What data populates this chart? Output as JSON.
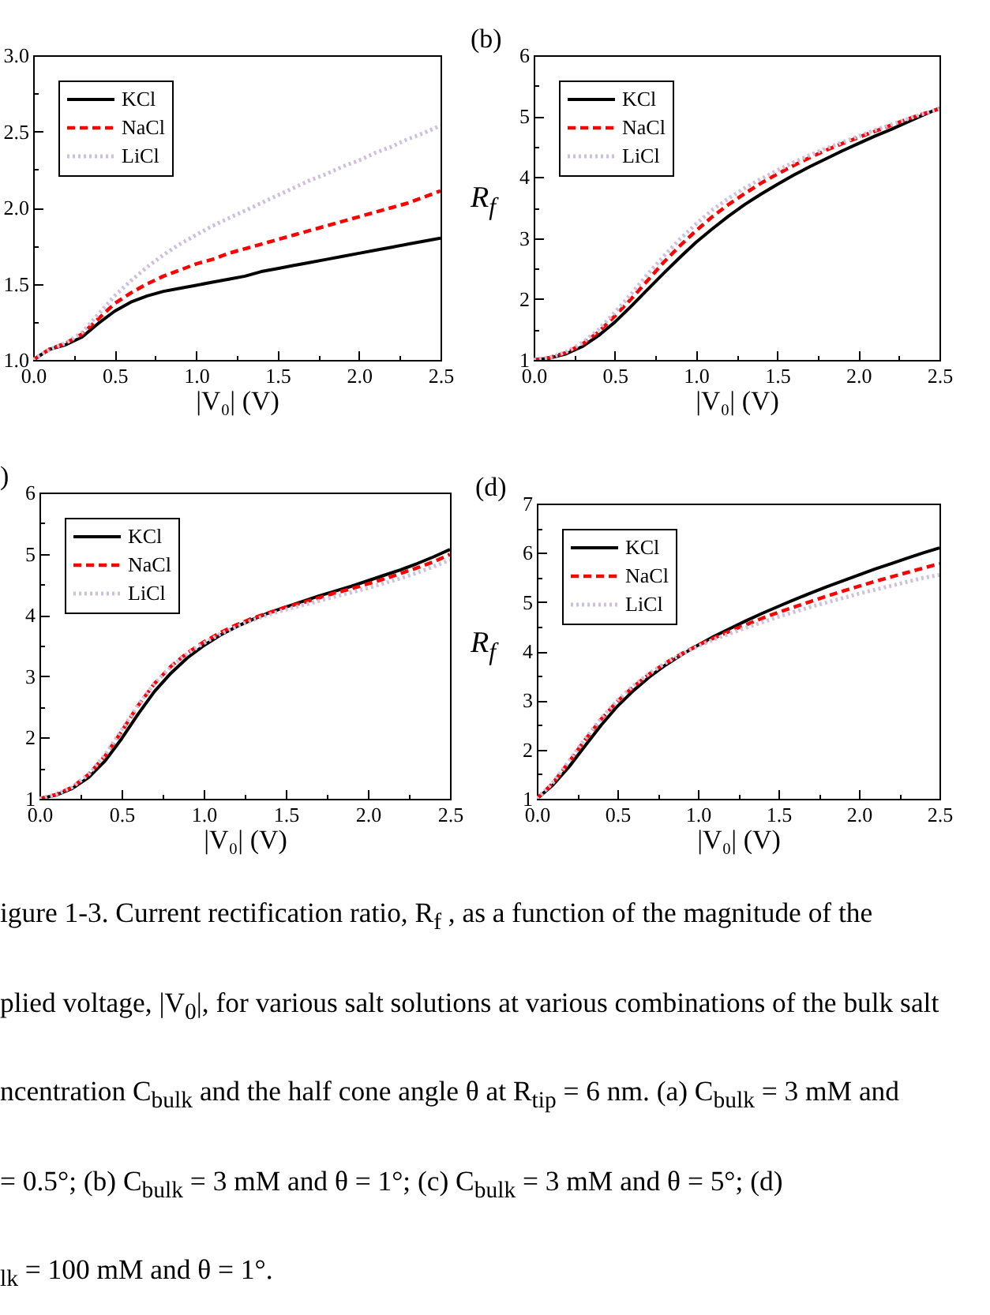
{
  "chart_data": [
    {
      "type": "line",
      "xlabel": "|V₀| (V)",
      "x": [
        0,
        0.1,
        0.2,
        0.3,
        0.4,
        0.5,
        0.6,
        0.7,
        0.8,
        0.9,
        1.0,
        1.1,
        1.2,
        1.3,
        1.4,
        1.5,
        1.6,
        1.7,
        1.8,
        1.9,
        2.0,
        2.1,
        2.2,
        2.3,
        2.4,
        2.5
      ],
      "series": [
        {
          "name": "KCl",
          "color": "#000000",
          "line_style": "solid",
          "values": [
            1.0,
            1.07,
            1.1,
            1.15,
            1.24,
            1.32,
            1.38,
            1.42,
            1.45,
            1.47,
            1.49,
            1.51,
            1.53,
            1.55,
            1.58,
            1.6,
            1.62,
            1.64,
            1.66,
            1.68,
            1.7,
            1.72,
            1.74,
            1.76,
            1.78,
            1.8
          ]
        },
        {
          "name": "NaCl",
          "color": "#ff0000",
          "line_style": "dashed",
          "values": [
            1.0,
            1.07,
            1.11,
            1.17,
            1.27,
            1.37,
            1.44,
            1.5,
            1.55,
            1.59,
            1.63,
            1.66,
            1.7,
            1.73,
            1.76,
            1.79,
            1.82,
            1.85,
            1.88,
            1.91,
            1.94,
            1.97,
            2.0,
            2.03,
            2.07,
            2.11
          ]
        },
        {
          "name": "LiCl",
          "color": "#cfbfdc",
          "line_style": "dotted",
          "values": [
            1.0,
            1.07,
            1.11,
            1.18,
            1.3,
            1.42,
            1.52,
            1.61,
            1.69,
            1.76,
            1.82,
            1.88,
            1.93,
            1.98,
            2.03,
            2.08,
            2.13,
            2.18,
            2.22,
            2.27,
            2.31,
            2.36,
            2.4,
            2.45,
            2.49,
            2.54
          ]
        }
      ],
      "xlim": [
        0,
        2.5
      ],
      "xticks": [
        {
          "value": 0,
          "label": "0.0"
        },
        {
          "value": 0.25,
          "label": null
        },
        0.5,
        {
          "value": 0.75,
          "label": null
        },
        {
          "value": 1,
          "label": "1.0"
        },
        {
          "value": 1.25,
          "label": null
        },
        1.5,
        {
          "value": 1.75,
          "label": null
        },
        {
          "value": 2,
          "label": "2.0"
        },
        {
          "value": 2.25,
          "label": null
        },
        2.5
      ],
      "ylim": [
        1,
        3
      ],
      "yticks": [
        {
          "value": 1,
          "label": "1.0"
        },
        {
          "value": 1.25,
          "label": null
        },
        1.5,
        {
          "value": 1.75,
          "label": null
        },
        {
          "value": 2,
          "label": "2.0"
        },
        {
          "value": 2.25,
          "label": null
        },
        2.5,
        {
          "value": 2.75,
          "label": null
        },
        {
          "value": 3,
          "label": "3.0"
        }
      ],
      "legend": "top left"
    },
    {
      "type": "line",
      "title": "(b)",
      "xlabel": "|V₀| (V)",
      "ylabel": "R$_{f}$",
      "x": [
        0,
        0.1,
        0.2,
        0.3,
        0.4,
        0.5,
        0.6,
        0.7,
        0.8,
        0.9,
        1.0,
        1.1,
        1.2,
        1.3,
        1.4,
        1.5,
        1.6,
        1.7,
        1.8,
        1.9,
        2.0,
        2.1,
        2.2,
        2.3,
        2.4,
        2.5
      ],
      "series": [
        {
          "name": "KCl",
          "color": "#000000",
          "line_style": "solid",
          "values": [
            1.0,
            1.03,
            1.1,
            1.22,
            1.4,
            1.62,
            1.88,
            2.15,
            2.42,
            2.68,
            2.93,
            3.15,
            3.36,
            3.55,
            3.72,
            3.88,
            4.03,
            4.17,
            4.3,
            4.43,
            4.55,
            4.67,
            4.78,
            4.9,
            5.02,
            5.13
          ]
        },
        {
          "name": "NaCl",
          "color": "#ff0000",
          "line_style": "dashed",
          "values": [
            1.0,
            1.04,
            1.12,
            1.26,
            1.46,
            1.72,
            2.0,
            2.3,
            2.6,
            2.87,
            3.12,
            3.35,
            3.55,
            3.73,
            3.9,
            4.05,
            4.19,
            4.32,
            4.44,
            4.55,
            4.65,
            4.75,
            4.85,
            4.95,
            5.04,
            5.12
          ]
        },
        {
          "name": "LiCl",
          "color": "#cfbfdc",
          "line_style": "dotted",
          "values": [
            1.0,
            1.04,
            1.13,
            1.28,
            1.5,
            1.78,
            2.08,
            2.4,
            2.7,
            2.98,
            3.23,
            3.46,
            3.65,
            3.82,
            3.97,
            4.11,
            4.24,
            4.36,
            4.47,
            4.57,
            4.67,
            4.77,
            4.86,
            4.95,
            5.04,
            5.12
          ]
        }
      ],
      "xlim": [
        0,
        2.5
      ],
      "xticks": [
        {
          "value": 0,
          "label": "0.0"
        },
        {
          "value": 0.25,
          "label": null
        },
        0.5,
        {
          "value": 0.75,
          "label": null
        },
        {
          "value": 1,
          "label": "1.0"
        },
        {
          "value": 1.25,
          "label": null
        },
        1.5,
        {
          "value": 1.75,
          "label": null
        },
        {
          "value": 2,
          "label": "2.0"
        },
        {
          "value": 2.25,
          "label": null
        },
        2.5
      ],
      "ylim": [
        1,
        6
      ],
      "yticks": [
        1,
        {
          "value": 1.5,
          "label": null
        },
        2,
        {
          "value": 2.5,
          "label": null
        },
        3,
        {
          "value": 3.5,
          "label": null
        },
        4,
        {
          "value": 4.5,
          "label": null
        },
        5,
        {
          "value": 5.5,
          "label": null
        },
        6
      ],
      "legend": "top left"
    },
    {
      "type": "line",
      "title": ")",
      "xlabel": "|V₀| (V)",
      "x": [
        0,
        0.1,
        0.2,
        0.3,
        0.4,
        0.5,
        0.6,
        0.7,
        0.8,
        0.9,
        1.0,
        1.1,
        1.2,
        1.3,
        1.4,
        1.5,
        1.6,
        1.7,
        1.8,
        1.9,
        2.0,
        2.1,
        2.2,
        2.3,
        2.4,
        2.5
      ],
      "series": [
        {
          "name": "KCl",
          "color": "#000000",
          "line_style": "solid",
          "values": [
            1.0,
            1.06,
            1.17,
            1.35,
            1.62,
            1.98,
            2.38,
            2.75,
            3.05,
            3.3,
            3.5,
            3.67,
            3.81,
            3.93,
            4.04,
            4.13,
            4.22,
            4.31,
            4.39,
            4.47,
            4.56,
            4.65,
            4.74,
            4.84,
            4.95,
            5.07
          ]
        },
        {
          "name": "NaCl",
          "color": "#ff0000",
          "line_style": "dashed",
          "values": [
            1.0,
            1.07,
            1.19,
            1.4,
            1.7,
            2.1,
            2.52,
            2.88,
            3.16,
            3.38,
            3.56,
            3.71,
            3.84,
            3.95,
            4.04,
            4.13,
            4.2,
            4.28,
            4.36,
            4.43,
            4.51,
            4.59,
            4.68,
            4.77,
            4.87,
            4.99
          ]
        },
        {
          "name": "LiCl",
          "color": "#cfbfdc",
          "line_style": "dotted",
          "values": [
            1.0,
            1.07,
            1.19,
            1.4,
            1.72,
            2.12,
            2.53,
            2.88,
            3.15,
            3.37,
            3.54,
            3.69,
            3.81,
            3.92,
            4.01,
            4.09,
            4.16,
            4.23,
            4.3,
            4.37,
            4.44,
            4.52,
            4.6,
            4.69,
            4.79,
            4.9
          ]
        }
      ],
      "xlim": [
        0,
        2.5
      ],
      "xticks": [
        {
          "value": 0,
          "label": "0.0"
        },
        {
          "value": 0.25,
          "label": null
        },
        0.5,
        {
          "value": 0.75,
          "label": null
        },
        {
          "value": 1,
          "label": "1.0"
        },
        {
          "value": 1.25,
          "label": null
        },
        1.5,
        {
          "value": 1.75,
          "label": null
        },
        {
          "value": 2,
          "label": "2.0"
        },
        {
          "value": 2.25,
          "label": null
        },
        2.5
      ],
      "ylim": [
        1,
        6
      ],
      "yticks": [
        1,
        {
          "value": 1.5,
          "label": null
        },
        2,
        {
          "value": 2.5,
          "label": null
        },
        3,
        {
          "value": 3.5,
          "label": null
        },
        4,
        {
          "value": 4.5,
          "label": null
        },
        5,
        {
          "value": 5.5,
          "label": null
        },
        6
      ],
      "legend": "top left"
    },
    {
      "type": "line",
      "title": "(d)",
      "xlabel": "|V₀| (V)",
      "ylabel": "R$_{f}$",
      "x": [
        0,
        0.1,
        0.2,
        0.3,
        0.4,
        0.5,
        0.6,
        0.7,
        0.8,
        0.9,
        1.0,
        1.1,
        1.2,
        1.3,
        1.4,
        1.5,
        1.6,
        1.7,
        1.8,
        1.9,
        2.0,
        2.1,
        2.2,
        2.3,
        2.4,
        2.5
      ],
      "series": [
        {
          "name": "KCl",
          "color": "#000000",
          "line_style": "solid",
          "values": [
            1.0,
            1.28,
            1.65,
            2.08,
            2.5,
            2.88,
            3.2,
            3.48,
            3.72,
            3.93,
            4.12,
            4.3,
            4.46,
            4.62,
            4.77,
            4.91,
            5.05,
            5.18,
            5.31,
            5.43,
            5.55,
            5.67,
            5.78,
            5.89,
            6.0,
            6.1
          ]
        },
        {
          "name": "NaCl",
          "color": "#ff0000",
          "line_style": "dashed",
          "values": [
            1.0,
            1.32,
            1.75,
            2.2,
            2.62,
            2.98,
            3.28,
            3.54,
            3.76,
            3.95,
            4.12,
            4.27,
            4.41,
            4.54,
            4.67,
            4.79,
            4.9,
            5.01,
            5.12,
            5.22,
            5.32,
            5.42,
            5.51,
            5.6,
            5.69,
            5.78
          ]
        },
        {
          "name": "LiCl",
          "color": "#cfbfdc",
          "line_style": "dotted",
          "values": [
            1.0,
            1.33,
            1.77,
            2.22,
            2.64,
            3.0,
            3.3,
            3.55,
            3.76,
            3.94,
            4.1,
            4.24,
            4.36,
            4.48,
            4.59,
            4.7,
            4.8,
            4.9,
            4.99,
            5.08,
            5.17,
            5.25,
            5.33,
            5.41,
            5.49,
            5.55
          ]
        }
      ],
      "xlim": [
        0,
        2.5
      ],
      "xticks": [
        {
          "value": 0,
          "label": "0.0"
        },
        {
          "value": 0.25,
          "label": null
        },
        0.5,
        {
          "value": 0.75,
          "label": null
        },
        {
          "value": 1,
          "label": "1.0"
        },
        {
          "value": 1.25,
          "label": null
        },
        1.5,
        {
          "value": 1.75,
          "label": null
        },
        {
          "value": 2,
          "label": "2.0"
        },
        {
          "value": 2.25,
          "label": null
        },
        2.5
      ],
      "ylim": [
        1,
        7
      ],
      "yticks": [
        1,
        {
          "value": 1.5,
          "label": null
        },
        2,
        {
          "value": 2.5,
          "label": null
        },
        3,
        {
          "value": 3.5,
          "label": null
        },
        4,
        {
          "value": 4.5,
          "label": null
        },
        5,
        {
          "value": 5.5,
          "label": null
        },
        6,
        {
          "value": 6.5,
          "label": null
        },
        7
      ],
      "legend": "top left"
    },
    {
      "type": "other",
      "annotations": [
        "igure 1-3. Current rectification ratio, R$_{f}$ , as a function of the magnitude of the",
        "plied voltage, |V$_{0}$|, for various salt solutions at various combinations of the bulk salt",
        "ncentration C$_{bulk}$ and the half cone angle θ at R$_{tip}$ = 6 nm. (a) C$_{bulk}$ = 3 mM and",
        "= 0.5°; (b) C$_{bulk}$ = 3 mM and θ = 1°; (c) C$_{bulk}$ = 3 mM and θ = 5°; (d)",
        "$_{lk}$ = 100 mM and θ = 1°."
      ]
    }
  ]
}
